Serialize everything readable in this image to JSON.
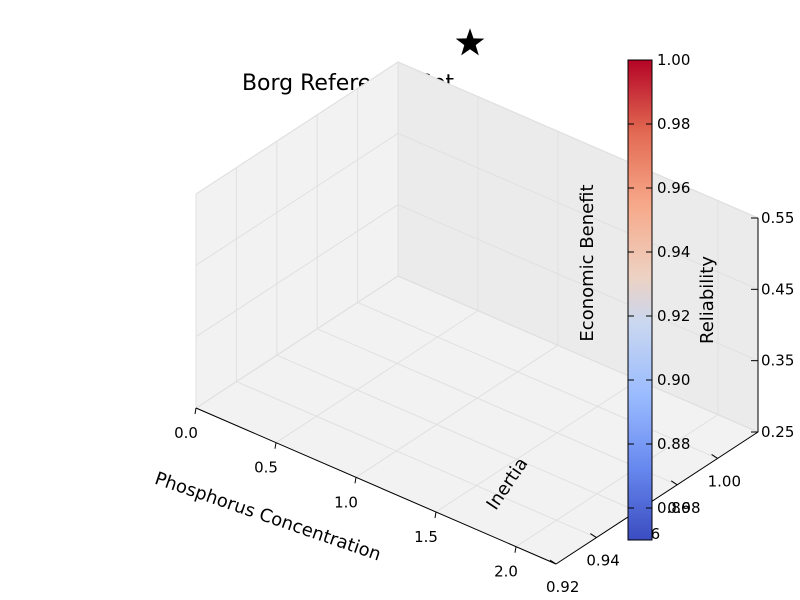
{
  "chart_data": {
    "type": "scatter3d",
    "title": "Borg Reference Set",
    "xlabel": "Phosphorus Concentration",
    "ylabel": "Inertia",
    "zlabel": "Economic Benefit",
    "colorbar_label": "Reliability",
    "xlim": [
      0.0,
      2.25
    ],
    "ylim": [
      0.92,
      1.02
    ],
    "zlim": [
      0.25,
      0.55
    ],
    "color_range": [
      0.85,
      1.0
    ],
    "x_ticks": [
      "0.0",
      "0.5",
      "1.0",
      "1.5",
      "2.0"
    ],
    "y_ticks": [
      "0.92",
      "0.94",
      "0.96",
      "0.98",
      "1.00"
    ],
    "z_ticks": [
      "0.25",
      "0.35",
      "0.45",
      "0.55"
    ],
    "colorbar_ticks": [
      "0.86",
      "0.88",
      "0.90",
      "0.92",
      "0.94",
      "0.96",
      "0.98",
      "1.00"
    ],
    "grid": true,
    "colormap": "coolwarm",
    "colormap_colors": [
      "#3b4cc0",
      "#dddddd",
      "#b40426"
    ],
    "ideal_point_marker": "black-star",
    "series": [
      {
        "points": []
      }
    ]
  }
}
